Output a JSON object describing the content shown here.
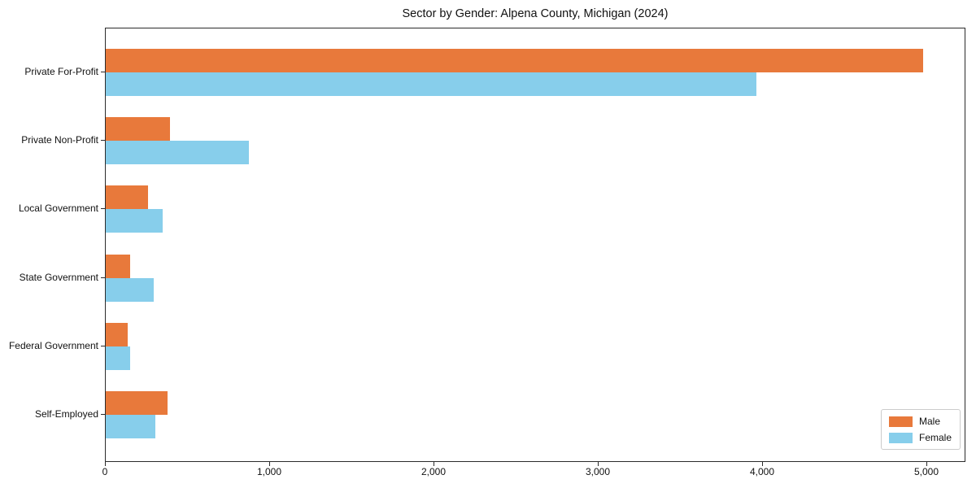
{
  "title": "Sector by Gender: Alpena County, Michigan (2024)",
  "chart_data": {
    "type": "bar",
    "orientation": "horizontal",
    "title": "Sector by Gender: Alpena County, Michigan (2024)",
    "categories": [
      "Private For-Profit",
      "Private Non-Profit",
      "Local Government",
      "State Government",
      "Federal Government",
      "Self-Employed"
    ],
    "series": [
      {
        "name": "Male",
        "color": "#E8793B",
        "values": [
          4975,
          390,
          260,
          150,
          135,
          375
        ]
      },
      {
        "name": "Female",
        "color": "#87CEEB",
        "values": [
          3960,
          870,
          345,
          290,
          148,
          300
        ]
      }
    ],
    "xlabel": "",
    "ylabel": "",
    "xlim": [
      0,
      5230
    ],
    "xticks": [
      0,
      1000,
      2000,
      3000,
      4000,
      5000
    ],
    "xtick_labels": [
      "0",
      "1,000",
      "2,000",
      "3,000",
      "4,000",
      "5,000"
    ],
    "grid": false,
    "legend_position": "lower right",
    "colors": {
      "male": "#E8793B",
      "female": "#87CEEB",
      "spine": "#2b2b2b",
      "legend_border": "#cccccc"
    }
  }
}
